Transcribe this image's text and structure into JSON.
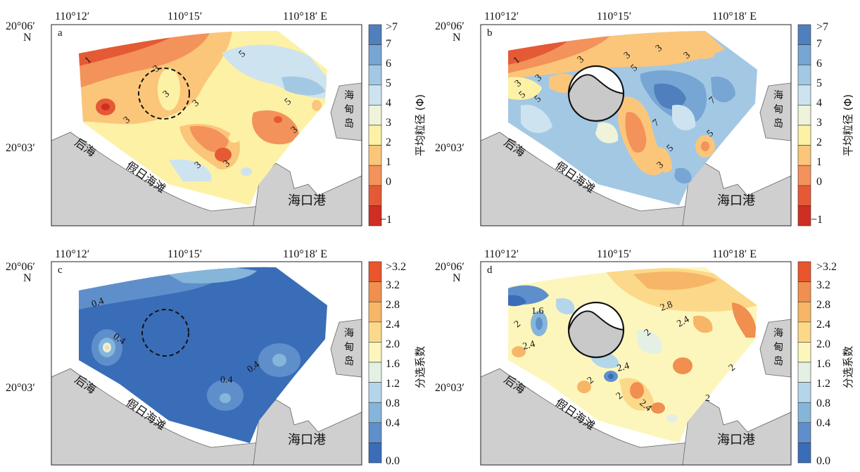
{
  "axis_labels": {
    "lon": [
      "110°12′",
      "110°15′",
      "110°18′ E"
    ],
    "lat_top": "20°06′",
    "lat_bottom": "20°03′",
    "n_label": "N"
  },
  "places": {
    "houhai": "后海",
    "jiari": "假日海滩",
    "haikou": "海口港",
    "haidian": [
      "海",
      "甸",
      "岛"
    ]
  },
  "panels": [
    {
      "id": "a",
      "letter": "a",
      "variable": "mean-grain-size",
      "contour_labels": [
        "1",
        "3",
        "3",
        "3",
        "5",
        "3",
        "3",
        "3",
        "5",
        "3"
      ],
      "marker": "dashed-circle"
    },
    {
      "id": "b",
      "letter": "b",
      "variable": "mean-grain-size",
      "contour_labels": [
        "1",
        "3",
        "3",
        "5",
        "5",
        "3",
        "3",
        "3",
        "3",
        "5",
        "7",
        "7",
        "5",
        "5",
        "3"
      ],
      "marker": "dumped-pit"
    },
    {
      "id": "c",
      "letter": "c",
      "variable": "sorting-coefficient",
      "contour_labels": [
        "0.4",
        "0.4",
        "0.4",
        "0.4"
      ],
      "marker": "dashed-circle"
    },
    {
      "id": "d",
      "letter": "d",
      "variable": "sorting-coefficient",
      "contour_labels": [
        "1.6",
        "2",
        "2.4",
        "2.8",
        "2.4",
        "2",
        "2.4",
        "2",
        "2",
        "2.4",
        "2",
        "2"
      ],
      "marker": "dumped-pit"
    }
  ],
  "legends": {
    "grain": {
      "title": "平均粒径 (Φ)",
      "ticks": [
        ">7",
        "7",
        "6",
        "5",
        "4",
        "3",
        "2",
        "1",
        "0",
        "−1"
      ],
      "colors": [
        "#4f7fbd",
        "#77a6d4",
        "#a3c8e4",
        "#cde3ef",
        "#eef3d9",
        "#fdf1a6",
        "#fbc67a",
        "#f3925a",
        "#e45a35",
        "#cf2e22"
      ]
    },
    "sorting": {
      "title": "分选系数",
      "ticks": [
        ">3.2",
        "3.2",
        "2.8",
        "2.4",
        "2.0",
        "1.6",
        "1.2",
        "0.8",
        "0.4",
        "0.0"
      ],
      "colors": [
        "#e9552c",
        "#f08f4f",
        "#f7b667",
        "#fcd98a",
        "#fdf6bc",
        "#e4f0e4",
        "#b5d6ea",
        "#86b5da",
        "#5f8fcb",
        "#3a6db8"
      ]
    }
  }
}
